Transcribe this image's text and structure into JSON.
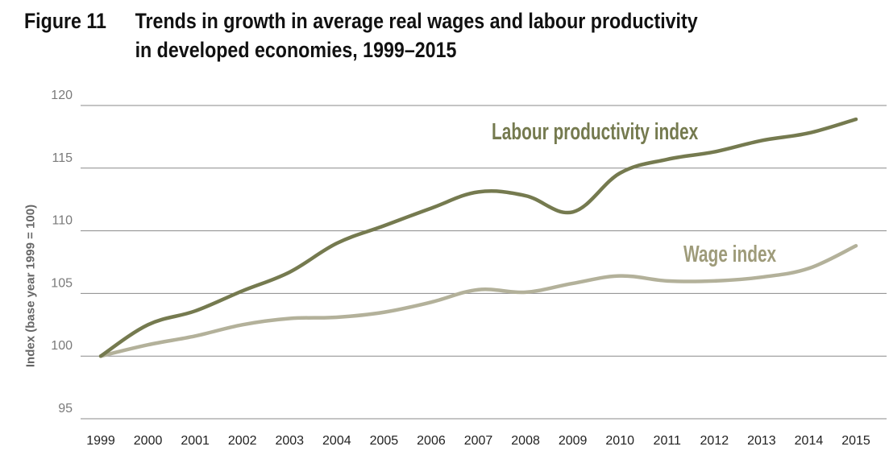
{
  "title": {
    "figure_label": "Figure 11",
    "line1": "Trends in growth in average real wages and labour productivity",
    "line2": "in developed economies, 1999–2015"
  },
  "chart_data": {
    "type": "line",
    "title": "Trends in growth in average real wages and labour productivity in developed economies, 1999–2015",
    "xlabel": "",
    "ylabel": "Index (base year 1999 = 100)",
    "ylim": [
      95,
      120
    ],
    "yticks": [
      "95",
      "100",
      "105",
      "110",
      "115",
      "120"
    ],
    "grid": true,
    "legend": "inline labels",
    "x": [
      "1999",
      "2000",
      "2001",
      "2002",
      "2003",
      "2004",
      "2005",
      "2006",
      "2007",
      "2008",
      "2009",
      "2010",
      "2011",
      "2012",
      "2013",
      "2014",
      "2015"
    ],
    "series": [
      {
        "name": "Labour productivity index",
        "color": "#757a4f",
        "values": [
          100,
          102.5,
          103.6,
          105.2,
          106.7,
          109.0,
          110.4,
          111.8,
          113.1,
          112.8,
          111.5,
          114.6,
          115.7,
          116.3,
          117.2,
          117.8,
          118.9
        ]
      },
      {
        "name": "Wage index",
        "color": "#b3b19a",
        "values": [
          100,
          100.9,
          101.6,
          102.5,
          103.0,
          103.1,
          103.5,
          104.3,
          105.3,
          105.1,
          105.8,
          106.4,
          106.0,
          106.0,
          106.3,
          107.0,
          108.8
        ]
      }
    ],
    "label_colors": [
      "#757a4f",
      "#9e9b7a"
    ]
  }
}
